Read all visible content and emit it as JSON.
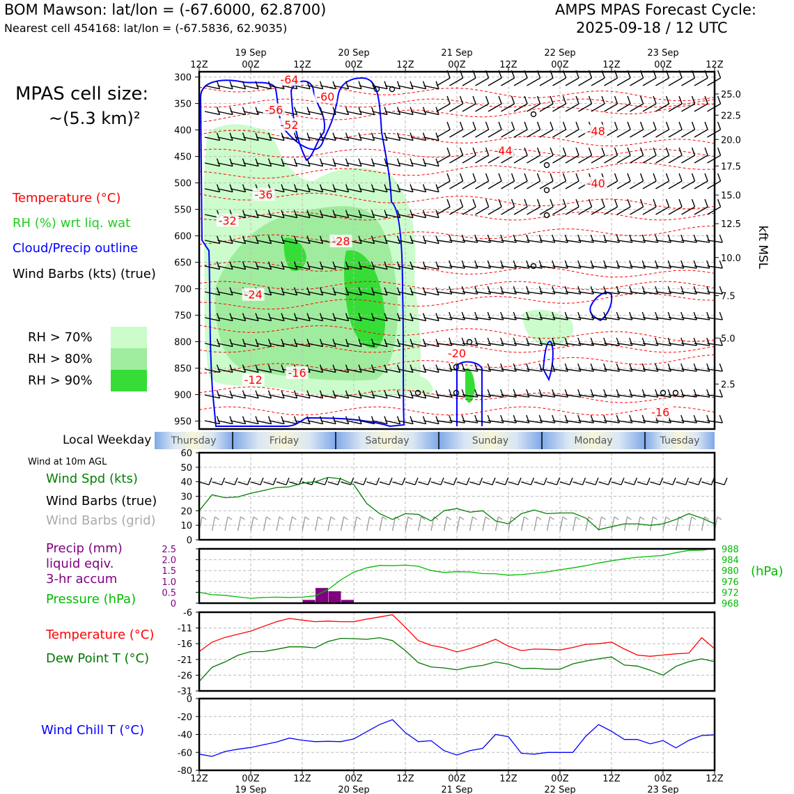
{
  "header": {
    "left_title": "BOM Mawson: lat/lon = (-67.6000, 62.8700)",
    "left_subtitle": "Nearest cell 454168: lat/lon = (-67.5836, 62.9035)",
    "right_title": "AMPS MPAS Forecast Cycle:",
    "right_subtitle": "2025-09-18 / 12 UTC"
  },
  "cell_size": {
    "line1": "MPAS cell size:",
    "line2": "~(5.3 km)²"
  },
  "legend": {
    "temperature": "Temperature (°C)",
    "rh": "RH (%) wrt liq. wat",
    "cloud": "Cloud/Precip outline",
    "barbs": "Wind Barbs (kts) (true)",
    "rh70": "RH > 70%",
    "rh80": "RH > 80%",
    "rh90": "RH > 90%"
  },
  "colors": {
    "temperature": "#ff0000",
    "rh_text": "#22cc22",
    "cloud": "#0000ff",
    "rh70": "#ccfccc",
    "rh80": "#a0ec9e",
    "rh90": "#36dd36",
    "precip": "#800080",
    "pressure": "#00bb00",
    "dewpoint": "#007700",
    "windchill": "#0000ff"
  },
  "time_axis": {
    "ticks": [
      "12Z",
      "00Z",
      "12Z",
      "00Z",
      "12Z",
      "00Z",
      "12Z",
      "00Z",
      "12Z",
      "00Z",
      "12Z"
    ],
    "dates": [
      {
        "tick": 1,
        "label": "19 Sep"
      },
      {
        "tick": 3,
        "label": "20 Sep"
      },
      {
        "tick": 5,
        "label": "21 Sep"
      },
      {
        "tick": 7,
        "label": "22 Sep"
      },
      {
        "tick": 9,
        "label": "23 Sep"
      }
    ]
  },
  "weekday_bar": {
    "label": "Local Weekday",
    "days": [
      "Thursday",
      "Friday",
      "Saturday",
      "Sunday",
      "Monday",
      "Tuesday"
    ]
  },
  "chart_data": [
    {
      "type": "heatmap",
      "name": "cross-section",
      "y_pressure_ticks": [
        300,
        350,
        400,
        450,
        500,
        550,
        600,
        650,
        700,
        750,
        800,
        850,
        900,
        950
      ],
      "ylim": [
        965,
        290
      ],
      "right_ticks": [
        "25.0",
        "22.5",
        "20.0",
        "17.5",
        "15.0",
        "12.5",
        "10.0",
        "7.5",
        "5.0",
        "2.5"
      ],
      "right_tick_pressures": [
        332,
        372,
        418,
        468,
        523,
        577,
        641,
        713,
        793,
        880
      ],
      "right_label": "kft MSL",
      "temperature_labels": [
        {
          "text": "-64",
          "x": 1.75,
          "p": 306
        },
        {
          "text": "-60",
          "x": 2.45,
          "p": 338
        },
        {
          "text": "-56",
          "x": 1.45,
          "p": 363
        },
        {
          "text": "-52",
          "x": 1.75,
          "p": 391
        },
        {
          "text": "-48",
          "x": 7.7,
          "p": 403
        },
        {
          "text": "-44",
          "x": 5.9,
          "p": 440
        },
        {
          "text": "-40",
          "x": 7.7,
          "p": 502
        },
        {
          "text": "-36",
          "x": 1.25,
          "p": 523
        },
        {
          "text": "-32",
          "x": 0.55,
          "p": 572
        },
        {
          "text": "-28",
          "x": 2.75,
          "p": 611
        },
        {
          "text": "-24",
          "x": 1.05,
          "p": 712
        },
        {
          "text": "-20",
          "x": 5.0,
          "p": 823
        },
        {
          "text": "-16",
          "x": 1.9,
          "p": 860
        },
        {
          "text": "-12",
          "x": 1.05,
          "p": 873
        },
        {
          "text": "-16",
          "x": 8.95,
          "p": 934
        }
      ]
    },
    {
      "type": "line",
      "name": "wind-10m",
      "ylabel": "Wind Spd (kts)",
      "ylim": [
        0,
        60
      ],
      "yticks": [
        0,
        10,
        20,
        30,
        40,
        50,
        60
      ],
      "x": [
        0,
        0.25,
        0.5,
        0.75,
        1,
        1.25,
        1.5,
        1.75,
        2,
        2.25,
        2.5,
        2.75,
        3,
        3.25,
        3.5,
        3.75,
        4,
        4.25,
        4.5,
        4.75,
        5,
        5.25,
        5.5,
        5.75,
        6,
        6.25,
        6.5,
        6.75,
        7,
        7.25,
        7.5,
        7.75,
        8,
        8.25,
        8.5,
        8.75,
        9,
        9.25,
        9.5,
        9.75,
        10
      ],
      "values": [
        20,
        31,
        29,
        29.5,
        32,
        34,
        36,
        36.5,
        39,
        40,
        43,
        42,
        38,
        25,
        18,
        14,
        18,
        17.5,
        13,
        20,
        21.5,
        19,
        20,
        13,
        11,
        18,
        20.5,
        18,
        18.5,
        18.5,
        15,
        7,
        9,
        11,
        11,
        10,
        11,
        14,
        18,
        15,
        11
      ],
      "label": "Wind at 10m AGL",
      "series_labels": [
        "Wind Spd (kts)",
        "Wind Barbs (true)",
        "Wind Barbs (grid)"
      ]
    },
    {
      "type": "line",
      "name": "precip-pressure",
      "series": [
        {
          "name": "Pressure (hPa)",
          "x": [
            0,
            0.25,
            0.5,
            0.75,
            1,
            1.25,
            1.5,
            1.75,
            2,
            2.25,
            2.5,
            2.75,
            3,
            3.25,
            3.5,
            3.75,
            4,
            4.25,
            4.5,
            4.75,
            5,
            5.25,
            5.5,
            5.75,
            6,
            6.25,
            6.5,
            6.75,
            7,
            7.25,
            7.5,
            7.75,
            8,
            8.25,
            8.5,
            8.75,
            9,
            9.25,
            9.5,
            9.75,
            10
          ],
          "values": [
            972,
            971.1,
            970.9,
            970.3,
            969.8,
            970.1,
            970.2,
            970.1,
            970.2,
            970.7,
            973,
            976.6,
            979.4,
            981,
            981.9,
            981.8,
            982,
            981.6,
            980,
            979.3,
            979.6,
            979.5,
            978.9,
            978.8,
            978.3,
            978.5,
            979,
            979.5,
            980.3,
            981,
            981.8,
            982.8,
            983.6,
            984.3,
            984.9,
            985.2,
            985.6,
            986.6,
            987.4,
            987.5,
            988.2
          ]
        },
        {
          "name": "Precip (mm)",
          "type": "bar",
          "x": [
            2.25,
            2.5,
            2.75,
            3.0
          ],
          "values": [
            0.15,
            0.7,
            0.55,
            0.15
          ]
        }
      ],
      "precip_ylim": [
        0,
        2.5
      ],
      "precip_ticks": [
        "0",
        "0.5",
        "1.0",
        "1.5",
        "2.0",
        "2.5"
      ],
      "pressure_ylim": [
        968,
        988
      ],
      "pressure_ticks": [
        "968",
        "972",
        "976",
        "980",
        "984",
        "988"
      ],
      "labels": {
        "precip1": "Precip (mm)",
        "precip2": "liquid eqiv.",
        "precip3": "3-hr accum",
        "pressure": "Pressure (hPa)",
        "unit": "(hPa)"
      }
    },
    {
      "type": "line",
      "name": "temperature-dewpoint",
      "ylim": [
        -31,
        -6
      ],
      "yticks": [
        "-6",
        "-11",
        "-16",
        "-21",
        "-26",
        "-31"
      ],
      "series": [
        {
          "name": "Temperature (°C)",
          "x": [
            0,
            0.25,
            0.5,
            0.75,
            1,
            1.25,
            1.5,
            1.75,
            2,
            2.25,
            2.5,
            2.75,
            3,
            3.25,
            3.5,
            3.75,
            4,
            4.25,
            4.5,
            4.75,
            5,
            5.25,
            5.5,
            5.75,
            6,
            6.25,
            6.5,
            6.75,
            7,
            7.25,
            7.5,
            7.75,
            8,
            8.25,
            8.5,
            8.75,
            9,
            9.25,
            9.5,
            9.75,
            10
          ],
          "values": [
            -18.5,
            -15.5,
            -14,
            -13,
            -12,
            -10.5,
            -9,
            -8,
            -8.5,
            -9,
            -8.8,
            -9,
            -9,
            -8.2,
            -7.5,
            -6.8,
            -10.8,
            -15,
            -16.5,
            -17.3,
            -18.6,
            -17.6,
            -16.2,
            -14.6,
            -16.8,
            -18.2,
            -17.7,
            -17.8,
            -18,
            -17.2,
            -16.2,
            -16,
            -15.5,
            -17.7,
            -19.6,
            -20,
            -19.6,
            -19.2,
            -19,
            -14.1,
            -17.6
          ]
        },
        {
          "name": "Dew Point T (°C)",
          "x": [
            0,
            0.25,
            0.5,
            0.75,
            1,
            1.25,
            1.5,
            1.75,
            2,
            2.25,
            2.5,
            2.75,
            3,
            3.25,
            3.5,
            3.75,
            4,
            4.25,
            4.5,
            4.75,
            5,
            5.25,
            5.5,
            5.75,
            6,
            6.25,
            6.5,
            6.75,
            7,
            7.25,
            7.5,
            7.75,
            8,
            8.25,
            8.5,
            8.75,
            9,
            9.25,
            9.5,
            9.75,
            10
          ],
          "values": [
            -28,
            -23.5,
            -21.8,
            -19.7,
            -18.5,
            -18.5,
            -17.8,
            -17,
            -17,
            -17.3,
            -15.3,
            -14.3,
            -14.4,
            -14.6,
            -14.1,
            -15,
            -18.2,
            -22,
            -23.4,
            -23.7,
            -24.3,
            -23.4,
            -22.9,
            -21.8,
            -22.5,
            -23.9,
            -23.8,
            -24.1,
            -24.1,
            -22.4,
            -21.5,
            -20.8,
            -20.2,
            -22.8,
            -23.1,
            -24.4,
            -26,
            -23.2,
            -21.7,
            -20.8,
            -21.7
          ]
        }
      ]
    },
    {
      "type": "line",
      "name": "wind-chill",
      "ylabel": "Wind Chill T (°C)",
      "ylim": [
        -80,
        0
      ],
      "yticks": [
        0,
        -20,
        -40,
        -60,
        -80
      ],
      "x": [
        0,
        0.25,
        0.5,
        0.75,
        1,
        1.25,
        1.5,
        1.75,
        2,
        2.25,
        2.5,
        2.75,
        3,
        3.25,
        3.5,
        3.75,
        4,
        4.25,
        4.5,
        4.75,
        5,
        5.25,
        5.5,
        5.75,
        6,
        6.25,
        6.5,
        6.75,
        7,
        7.25,
        7.5,
        7.75,
        8,
        8.25,
        8.5,
        8.75,
        9,
        9.25,
        9.5,
        9.75,
        10
      ],
      "values": [
        -62,
        -64.5,
        -59,
        -56.5,
        -54.5,
        -51.5,
        -48.5,
        -44,
        -46.5,
        -48,
        -47.6,
        -48,
        -45,
        -37,
        -29,
        -23.5,
        -38,
        -48,
        -47,
        -58,
        -63,
        -58,
        -55.5,
        -40,
        -42.5,
        -61,
        -62,
        -60,
        -60,
        -60,
        -42,
        -29,
        -36.5,
        -45.6,
        -45.5,
        -50.5,
        -46.8,
        -55,
        -46.6,
        -41.2,
        -40.5
      ]
    }
  ]
}
